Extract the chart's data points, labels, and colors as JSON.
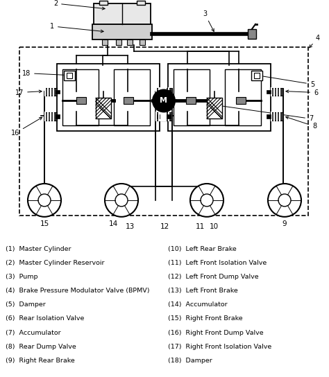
{
  "legend_left": [
    "(1)  Master Cylinder",
    "(2)  Master Cylinder Reservoir",
    "(3)  Pump",
    "(4)  Brake Pressure Modulator Valve (BPMV)",
    "(5)  Damper",
    "(6)  Rear Isolation Valve",
    "(7)  Accumulator",
    "(8)  Rear Dump Valve",
    "(9)  Right Rear Brake"
  ],
  "legend_right": [
    "(10)  Left Rear Brake",
    "(11)  Left Front Isolation Valve",
    "(12)  Left Front Dump Valve",
    "(13)  Left Front Brake",
    "(14)  Accumulator",
    "(15)  Right Front Brake",
    "(16)  Right Front Dump Valve",
    "(17)  Right Front Isolation Valve",
    "(18)  Damper"
  ],
  "bg_color": "#ffffff"
}
